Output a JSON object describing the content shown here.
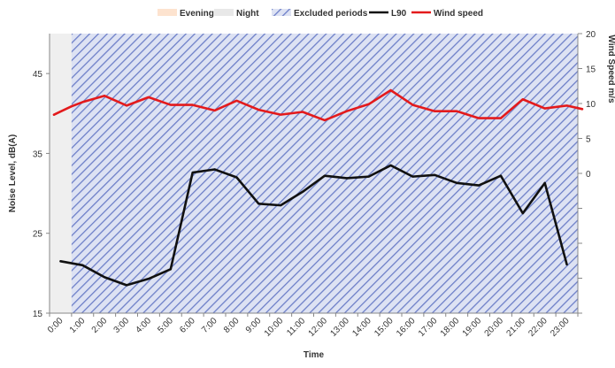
{
  "chart_data": {
    "type": "line",
    "xlabel": "Time",
    "ylabel": "Noise Level, dB(A)",
    "y2label": "Wind Speed m/s",
    "categories": [
      "0:00",
      "1:00",
      "2:00",
      "3:00",
      "4:00",
      "5:00",
      "6:00",
      "7:00",
      "8:00",
      "9:00",
      "10:00",
      "11:00",
      "12:00",
      "13:00",
      "14:00",
      "15:00",
      "16:00",
      "17:00",
      "18:00",
      "19:00",
      "20:00",
      "21:00",
      "22:00",
      "23:00"
    ],
    "ylim": [
      15,
      50
    ],
    "yticks": [
      15,
      25,
      35,
      45
    ],
    "y2lim": [
      -20,
      20
    ],
    "y2ticks": [
      0,
      5,
      10,
      15,
      20
    ],
    "grid": false,
    "legend_position": "top",
    "legend": [
      {
        "label": "Evening",
        "kind": "band",
        "color": "#fde3cf"
      },
      {
        "label": "Night",
        "kind": "band",
        "color": "#e8e8e8"
      },
      {
        "label": "Excluded periods",
        "kind": "hatch",
        "color": "#6d7fc8"
      },
      {
        "label": "L90",
        "kind": "line",
        "color": "#111111"
      },
      {
        "label": "Wind speed",
        "kind": "line",
        "color": "#e31a1c"
      }
    ],
    "excluded_period": {
      "start": 0.5,
      "end": 23.5
    },
    "series": [
      {
        "name": "L90",
        "axis": "left",
        "color": "#111111",
        "x": [
          0,
          1,
          2,
          3,
          4,
          5,
          6,
          7,
          8,
          9,
          10,
          11,
          12,
          13,
          14,
          15,
          16,
          17,
          18,
          19,
          20,
          21,
          22,
          23
        ],
        "values": [
          21.5,
          21.0,
          19.5,
          18.5,
          19.3,
          20.5,
          32.6,
          33.0,
          32.0,
          28.7,
          28.5,
          30.2,
          32.2,
          31.9,
          32.1,
          33.5,
          32.1,
          32.3,
          31.3,
          31.0,
          32.2,
          27.5,
          31.3,
          21.1
        ]
      },
      {
        "name": "Wind speed",
        "axis": "right",
        "color": "#e31a1c",
        "x": [
          -0.3,
          0.5,
          1,
          2,
          3,
          4,
          5,
          6,
          7,
          8,
          9,
          10,
          11,
          12,
          13,
          14,
          15,
          16,
          17,
          18,
          19,
          20,
          21,
          22,
          23,
          23.7
        ],
        "values": [
          8.4,
          9.6,
          10.2,
          11.1,
          9.7,
          10.9,
          9.8,
          9.8,
          9.0,
          10.4,
          9.1,
          8.4,
          8.8,
          7.6,
          8.9,
          9.9,
          11.9,
          9.8,
          8.9,
          8.9,
          7.9,
          7.9,
          10.6,
          9.3,
          9.7,
          9.2
        ]
      }
    ]
  }
}
